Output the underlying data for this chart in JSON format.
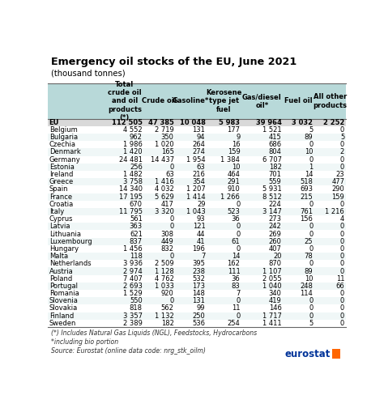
{
  "title": "Emergency oil stocks of the EU, June 2021",
  "subtitle": "(thousand tonnes)",
  "col_headers": [
    "Total\ncrude oil\nand oil\nproducts\n(*)",
    "Crude oil",
    "Gasoline*",
    "Kerosene\ntype jet\nfuel",
    "Gas/diesel\noil*",
    "Fuel oil",
    "All other\nproducts"
  ],
  "countries": [
    "EU",
    "Belgium",
    "Bulgaria",
    "Czechia",
    "Denmark",
    "Germany",
    "Estonia",
    "Ireland",
    "Greece",
    "Spain",
    "France",
    "Croatia",
    "Italy",
    "Cyprus",
    "Latvia",
    "Lithuania",
    "Luxembourg",
    "Hungary",
    "Malta",
    "Netherlands",
    "Austria",
    "Poland",
    "Portugal",
    "Romania",
    "Slovenia",
    "Slovakia",
    "Finland",
    "Sweden"
  ],
  "data": [
    [
      "112 505",
      "47 385",
      "10 048",
      "5 983",
      "39 964",
      "3 032",
      "2 252"
    ],
    [
      "4 552",
      "2 719",
      "131",
      "177",
      "1 521",
      "5",
      "0"
    ],
    [
      "962",
      "350",
      "94",
      "9",
      "415",
      "89",
      "5"
    ],
    [
      "1 986",
      "1 020",
      "264",
      "16",
      "686",
      "0",
      "0"
    ],
    [
      "1 420",
      "165",
      "274",
      "159",
      "804",
      "10",
      "2"
    ],
    [
      "24 481",
      "14 437",
      "1 954",
      "1 384",
      "6 707",
      "0",
      "0"
    ],
    [
      "256",
      "0",
      "63",
      "10",
      "182",
      "1",
      "0"
    ],
    [
      "1 482",
      "63",
      "216",
      "464",
      "701",
      "14",
      "23"
    ],
    [
      "3 758",
      "1 416",
      "354",
      "291",
      "559",
      "518",
      "477"
    ],
    [
      "14 340",
      "4 032",
      "1 207",
      "910",
      "5 931",
      "693",
      "290"
    ],
    [
      "17 195",
      "5 629",
      "1 414",
      "1 266",
      "8 512",
      "215",
      "159"
    ],
    [
      "670",
      "417",
      "29",
      "0",
      "224",
      "0",
      "0"
    ],
    [
      "11 795",
      "3 320",
      "1 043",
      "523",
      "3 147",
      "761",
      "1 216"
    ],
    [
      "561",
      "0",
      "93",
      "36",
      "273",
      "156",
      "4"
    ],
    [
      "363",
      "0",
      "121",
      "0",
      "242",
      "0",
      "0"
    ],
    [
      "621",
      "308",
      "44",
      "0",
      "269",
      "0",
      "0"
    ],
    [
      "837",
      "449",
      "41",
      "61",
      "260",
      "25",
      "0"
    ],
    [
      "1 456",
      "832",
      "196",
      "0",
      "407",
      "0",
      "0"
    ],
    [
      "118",
      "0",
      "7",
      "14",
      "20",
      "78",
      "0"
    ],
    [
      "3 936",
      "2 509",
      "395",
      "162",
      "870",
      "0",
      "0"
    ],
    [
      "2 974",
      "1 128",
      "238",
      "111",
      "1 107",
      "89",
      "0"
    ],
    [
      "7 407",
      "4 762",
      "532",
      "36",
      "2 055",
      "10",
      "11"
    ],
    [
      "2 693",
      "1 033",
      "173",
      "83",
      "1 040",
      "248",
      "66"
    ],
    [
      "1 529",
      "920",
      "148",
      "7",
      "340",
      "114",
      "0"
    ],
    [
      "550",
      "0",
      "131",
      "0",
      "419",
      "0",
      "0"
    ],
    [
      "818",
      "562",
      "99",
      "11",
      "146",
      "0",
      "0"
    ],
    [
      "3 357",
      "1 132",
      "250",
      "0",
      "1 717",
      "0",
      "0"
    ],
    [
      "2 389",
      "182",
      "536",
      "254",
      "1 411",
      "5",
      "0"
    ]
  ],
  "footnote1": "(*) Includes Natural Gas Liquids (NGL), Feedstocks, Hydrocarbons",
  "footnote2": "*including bio portion",
  "footnote3": "Source: Eurostat (online data code: nrg_stk_oilm)",
  "header_bg": "#b8d9d9",
  "eu_row_bg": "#d9d9d9",
  "alt_row_bg": "#ffffff",
  "odd_row_bg": "#f0f7f7",
  "bg_color": "#ffffff",
  "title_color": "#000000"
}
